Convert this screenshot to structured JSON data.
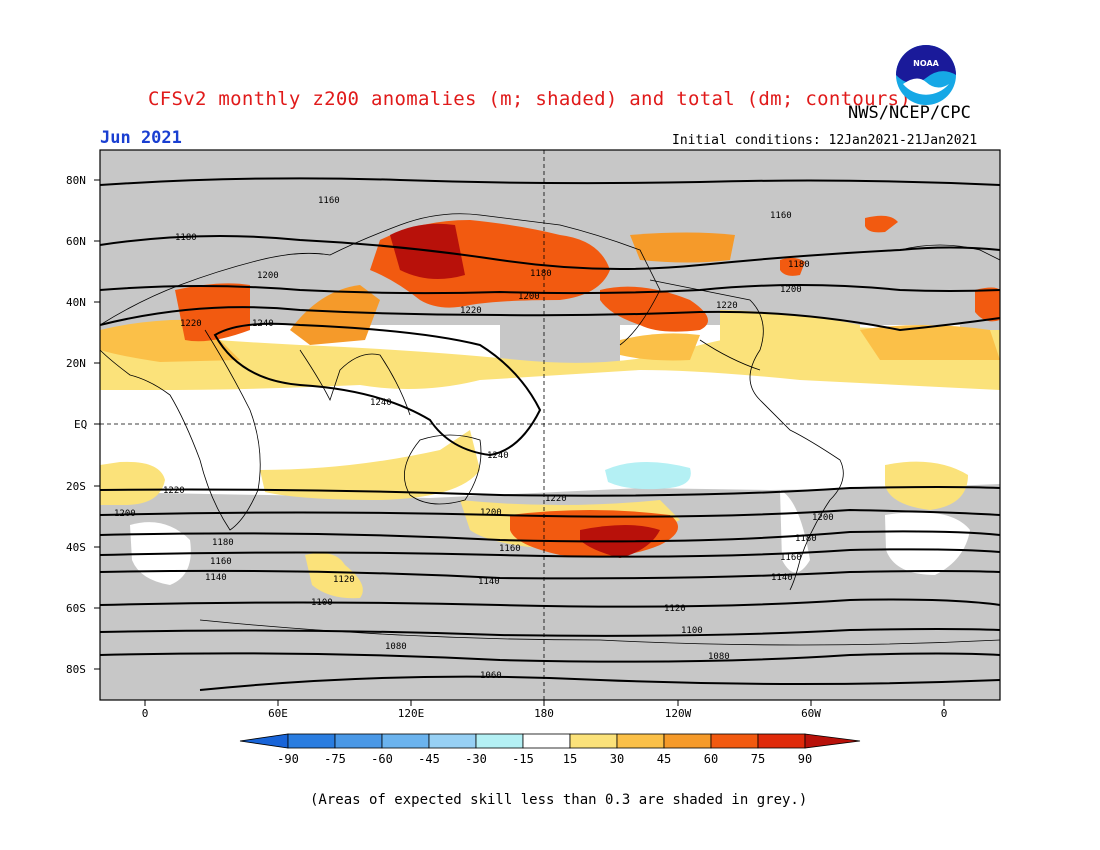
{
  "title": "CFSv2 monthly z200 anomalies (m; shaded) and total (dm; contours)",
  "organization": "NWS/NCEP/CPC",
  "logo_text": "NOAA",
  "valid_month": "Jun 2021",
  "initial_conditions": "Initial conditions: 12Jan2021-21Jan2021",
  "footnote": "(Areas of expected skill less than 0.3 are shaded in grey.)",
  "axes": {
    "lat_labels": [
      "80N",
      "60N",
      "40N",
      "20N",
      "EQ",
      "20S",
      "40S",
      "60S",
      "80S"
    ],
    "lon_labels": [
      "0",
      "60E",
      "120E",
      "180",
      "120W",
      "60W",
      "0"
    ]
  },
  "colorbar": {
    "ticks": [
      "-90",
      "-75",
      "-60",
      "-45",
      "-30",
      "-15",
      "15",
      "30",
      "45",
      "60",
      "75",
      "90"
    ],
    "colors": [
      "#1864d8",
      "#2a7de0",
      "#4a98e6",
      "#6bb3ee",
      "#97d0f4",
      "#b4f0f4",
      "#ffffff",
      "#fbe27a",
      "#fbc048",
      "#f59a2a",
      "#f25a10",
      "#e02a0a",
      "#b8110a"
    ]
  },
  "contour_labels": [
    "1160",
    "1160",
    "1180",
    "1180",
    "1180",
    "1200",
    "1200",
    "1200",
    "1220",
    "1220",
    "1220",
    "1240",
    "1240",
    "1240",
    "1220",
    "1220",
    "1200",
    "1200",
    "1200",
    "1180",
    "1180",
    "1160",
    "1160",
    "1160",
    "1140",
    "1140",
    "1140",
    "1120",
    "1120",
    "1100",
    "1100",
    "1080",
    "1080",
    "1060"
  ],
  "shading_note": {
    "grey": "Areas of expected skill less than 0.3",
    "colors": {
      "grey": "#c7c7c7",
      "white": "#ffffff",
      "land": "#000000"
    }
  }
}
